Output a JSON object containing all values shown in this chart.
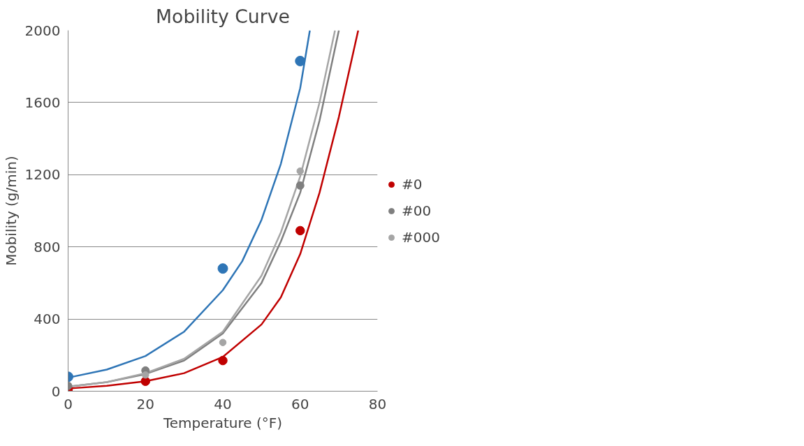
{
  "chart_data": {
    "type": "scatter",
    "title": "Mobility Curve",
    "xlabel": "Temperature (°F)",
    "ylabel": "Mobility (g/min)",
    "x": [
      0,
      20,
      40,
      60
    ],
    "series": [
      {
        "color": "#2e75b6",
        "values": [
          80,
          null,
          680,
          1830
        ]
      },
      {
        "name": "#0",
        "color": "#c00000",
        "values": [
          10,
          55,
          170,
          890
        ]
      },
      {
        "name": "#00",
        "color": "#7f7f7f",
        "values": [
          30,
          115,
          null,
          1140
        ]
      },
      {
        "name": "#000",
        "color": "#a5a5a5",
        "values": [
          null,
          90,
          270,
          1220
        ]
      },
      {
        "type": "line",
        "marker": "none",
        "color": "#2e75b6",
        "x": [
          0,
          10,
          20,
          30,
          40,
          45,
          50,
          55,
          60,
          62.5
        ],
        "values": [
          75,
          120,
          195,
          330,
          560,
          720,
          950,
          1260,
          1680,
          2000
        ]
      },
      {
        "type": "line",
        "marker": "none",
        "color": "#c00000",
        "x": [
          0,
          10,
          20,
          30,
          40,
          50,
          55,
          60,
          65,
          70,
          75
        ],
        "values": [
          15,
          30,
          55,
          100,
          190,
          370,
          520,
          760,
          1100,
          1520,
          2000
        ]
      },
      {
        "type": "line",
        "marker": "none",
        "color": "#7f7f7f",
        "x": [
          0,
          10,
          20,
          30,
          40,
          50,
          55,
          60,
          65,
          70
        ],
        "values": [
          25,
          50,
          95,
          170,
          320,
          600,
          830,
          1100,
          1500,
          2000
        ]
      },
      {
        "type": "line",
        "marker": "none",
        "color": "#a5a5a5",
        "x": [
          0,
          10,
          20,
          30,
          40,
          50,
          55,
          60,
          65,
          69
        ],
        "values": [
          25,
          50,
          100,
          180,
          330,
          640,
          880,
          1190,
          1600,
          2000
        ]
      }
    ],
    "xlim": [
      0,
      80
    ],
    "xticks": [
      0,
      20,
      40,
      60,
      80
    ],
    "ylim": [
      0,
      2000
    ],
    "yticks": [
      0,
      400,
      800,
      1200,
      1600,
      2000
    ],
    "grid": "y",
    "legend": "right",
    "marker": "circle"
  }
}
